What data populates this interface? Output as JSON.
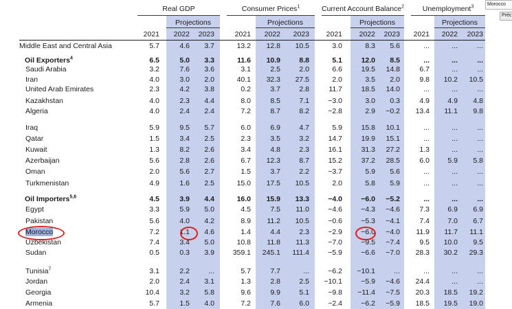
{
  "search": {
    "value": "Morocco",
    "prev_label": "Préc"
  },
  "groups": [
    {
      "title": "Real GDP",
      "sup": "",
      "projections": "Projections"
    },
    {
      "title": "Consumer Prices",
      "sup": "1",
      "projections": "Projections"
    },
    {
      "title": "Current Account Balance",
      "sup": "2",
      "projections": "Projections"
    },
    {
      "title": "Unemployment",
      "sup": "3",
      "projections": "Projections"
    }
  ],
  "years": [
    "2021",
    "2022",
    "2023"
  ],
  "rows": [
    {
      "label": "Middle East and Central Asia",
      "sup": "",
      "style": "region",
      "vals": [
        "5.7",
        "4.6",
        "3.7",
        "13.2",
        "12.8",
        "10.5",
        "3.0",
        "8.3",
        "5.6",
        "...",
        "...",
        "..."
      ]
    },
    {
      "label": "Oil Exporters",
      "sup": "4",
      "style": "bold",
      "vals": [
        "6.5",
        "5.0",
        "3.3",
        "11.6",
        "10.9",
        "8.8",
        "5.1",
        "12.0",
        "8.5",
        "...",
        "...",
        "..."
      ]
    },
    {
      "label": "Saudi Arabia",
      "sup": "",
      "style": "sub",
      "vals": [
        "3.2",
        "7.6",
        "3.6",
        "3.1",
        "2.5",
        "2.0",
        "6.6",
        "19.5",
        "14.8",
        "6.7",
        "...",
        "..."
      ]
    },
    {
      "label": "Iran",
      "sup": "",
      "style": "sub",
      "vals": [
        "4.0",
        "3.0",
        "2.0",
        "40.1",
        "32.3",
        "27.5",
        "2.0",
        "3.5",
        "2.0",
        "9.8",
        "10.2",
        "10.5"
      ]
    },
    {
      "label": "United Arab Emirates",
      "sup": "",
      "style": "sub",
      "vals": [
        "2.3",
        "4.2",
        "3.8",
        "0.2",
        "3.7",
        "2.8",
        "11.7",
        "18.5",
        "14.0",
        "...",
        "...",
        "..."
      ]
    },
    {
      "label": "Kazakhstan",
      "sup": "",
      "style": "sub",
      "vals": [
        "4.0",
        "2.3",
        "4.4",
        "8.0",
        "8.5",
        "7.1",
        "−3.0",
        "3.0",
        "0.3",
        "4.9",
        "4.9",
        "4.8"
      ]
    },
    {
      "label": "Algeria",
      "sup": "",
      "style": "sub",
      "vals": [
        "4.0",
        "2.4",
        "2.4",
        "7.2",
        "8.7",
        "8.2",
        "−2.8",
        "2.9",
        "−0.2",
        "13.4",
        "11.1",
        "9.8"
      ]
    },
    {
      "label": "Iraq",
      "sup": "",
      "style": "sub",
      "vals": [
        "5.9",
        "9.5",
        "5.7",
        "6.0",
        "6.9",
        "4.7",
        "5.9",
        "15.8",
        "10.1",
        "...",
        "...",
        "..."
      ]
    },
    {
      "label": "Qatar",
      "sup": "",
      "style": "sub",
      "vals": [
        "1.5",
        "3.4",
        "2.5",
        "2.3",
        "3.5",
        "3.2",
        "14.7",
        "19.9",
        "15.1",
        "...",
        "...",
        "..."
      ]
    },
    {
      "label": "Kuwait",
      "sup": "",
      "style": "sub",
      "vals": [
        "1.3",
        "8.2",
        "2.6",
        "3.4",
        "4.8",
        "2.3",
        "16.1",
        "31.3",
        "27.2",
        "1.3",
        "...",
        "..."
      ]
    },
    {
      "label": "Azerbaijan",
      "sup": "",
      "style": "sub",
      "vals": [
        "5.6",
        "2.8",
        "2.6",
        "6.7",
        "12.3",
        "8.7",
        "15.2",
        "37.2",
        "28.5",
        "6.0",
        "5.9",
        "5.8"
      ]
    },
    {
      "label": "Oman",
      "sup": "",
      "style": "sub",
      "vals": [
        "2.0",
        "5.6",
        "2.7",
        "1.5",
        "3.7",
        "2.2",
        "−3.7",
        "5.9",
        "5.6",
        "...",
        "...",
        "..."
      ]
    },
    {
      "label": "Turkmenistan",
      "sup": "",
      "style": "sub",
      "vals": [
        "4.9",
        "1.6",
        "2.5",
        "15.0",
        "17.5",
        "10.5",
        "2.0",
        "5.8",
        "5.9",
        "...",
        "...",
        "..."
      ]
    },
    {
      "label": "Oil Importers",
      "sup": "5,6",
      "style": "bold",
      "vals": [
        "4.5",
        "3.9",
        "4.4",
        "16.0",
        "15.9",
        "13.3",
        "−4.0",
        "−6.0",
        "−5.2",
        "...",
        "...",
        "..."
      ]
    },
    {
      "label": "Egypt",
      "sup": "",
      "style": "sub",
      "vals": [
        "3.3",
        "5.9",
        "5.0",
        "4.5",
        "7.5",
        "11.0",
        "−4.6",
        "−4.3",
        "−4.6",
        "7.3",
        "6.9",
        "6.9"
      ]
    },
    {
      "label": "Pakistan",
      "sup": "",
      "style": "sub",
      "vals": [
        "5.6",
        "4.0",
        "4.2",
        "8.9",
        "11.2",
        "10.5",
        "−0.6",
        "−5.3",
        "−4.1",
        "7.4",
        "7.0",
        "6.7"
      ]
    },
    {
      "label": "Morocco",
      "sup": "",
      "style": "sub",
      "highlight": true,
      "vals": [
        "7.2",
        "1.1",
        "4.6",
        "1.4",
        "4.4",
        "2.3",
        "−2.9",
        "−6.0",
        "−4.0",
        "11.9",
        "11.7",
        "11.1"
      ]
    },
    {
      "label": "Uzbekistan",
      "sup": "",
      "style": "sub",
      "vals": [
        "7.4",
        "3.4",
        "5.0",
        "10.8",
        "11.8",
        "11.3",
        "−7.0",
        "−9.5",
        "−7.4",
        "9.5",
        "10.0",
        "9.5"
      ]
    },
    {
      "label": "Sudan",
      "sup": "",
      "style": "sub",
      "vals": [
        "0.5",
        "0.3",
        "3.9",
        "359.1",
        "245.1",
        "111.4",
        "−5.9",
        "−6.6",
        "−7.0",
        "28.3",
        "30.2",
        "29.3"
      ]
    },
    {
      "label": "Tunisia",
      "sup": "7",
      "style": "sub",
      "vals": [
        "3.1",
        "2.2",
        "...",
        "5.7",
        "7.7",
        "...",
        "−6.2",
        "−10.1",
        "...",
        "...",
        "...",
        "..."
      ]
    },
    {
      "label": "Jordan",
      "sup": "",
      "style": "sub",
      "vals": [
        "2.0",
        "2.4",
        "3.1",
        "1.3",
        "2.8",
        "2.5",
        "−10.1",
        "−5.9",
        "−4.6",
        "24.4",
        "...",
        "..."
      ]
    },
    {
      "label": "Georgia",
      "sup": "",
      "style": "sub",
      "vals": [
        "10.4",
        "3.2",
        "5.8",
        "9.6",
        "9.9",
        "5.1",
        "−9.8",
        "−11.4",
        "−7.5",
        "20.3",
        "18.5",
        "19.2"
      ]
    },
    {
      "label": "Armenia",
      "sup": "",
      "style": "sub",
      "vals": [
        "5.7",
        "1.5",
        "4.0",
        "7.2",
        "7.6",
        "6.0",
        "−2.4",
        "−6.2",
        "−5.9",
        "18.5",
        "19.5",
        "19.0"
      ]
    }
  ]
}
